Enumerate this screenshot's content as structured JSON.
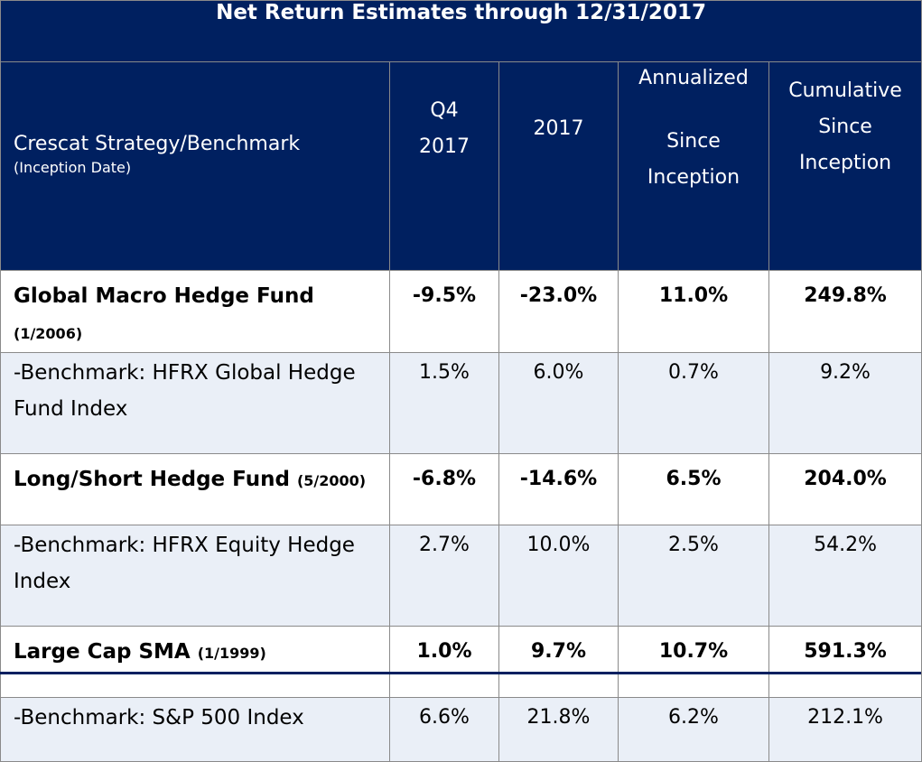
{
  "table": {
    "title": "Net Return Estimates through 12/31/2017",
    "header": {
      "strategy_label": "Crescat Strategy/Benchmark",
      "strategy_sub": "(Inception Date)",
      "q4_line1": "Q4",
      "q4_line2": "2017",
      "year_label": "2017",
      "annualized_line1": "Annualized",
      "annualized_line2": "Since",
      "annualized_line3": "Inception",
      "cumulative_line1": "Cumulative",
      "cumulative_line2": "Since",
      "cumulative_line3": "Inception"
    },
    "rows": [
      {
        "name": "Global Macro Hedge Fund",
        "inception": "(1/2006)",
        "q4": "-9.5%",
        "year": "-23.0%",
        "annualized": "11.0%",
        "cumulative": "249.8%"
      },
      {
        "name_line1": "-Benchmark: HFRX Global Hedge",
        "name_line2": "Fund Index",
        "q4": "1.5%",
        "year": "6.0%",
        "annualized": "0.7%",
        "cumulative": "9.2%"
      },
      {
        "name": "Long/Short Hedge Fund",
        "inception": "(5/2000)",
        "q4": "-6.8%",
        "year": "-14.6%",
        "annualized": "6.5%",
        "cumulative": "204.0%"
      },
      {
        "name_line1": "-Benchmark: HFRX Equity Hedge",
        "name_line2": "Index",
        "q4": "2.7%",
        "year": "10.0%",
        "annualized": "2.5%",
        "cumulative": "54.2%"
      },
      {
        "name": "Large Cap SMA",
        "inception": "(1/1999)",
        "q4": "1.0%",
        "year": "9.7%",
        "annualized": "10.7%",
        "cumulative": "591.3%"
      },
      {
        "name_line1": "-Benchmark: S&P 500 Index",
        "q4": "6.6%",
        "year": "21.8%",
        "annualized": "6.2%",
        "cumulative": "212.1%"
      }
    ]
  },
  "colors": {
    "header_navy": "#002060",
    "benchmark_row_bg": "#eaeff7",
    "fund_row_bg": "#ffffff"
  }
}
